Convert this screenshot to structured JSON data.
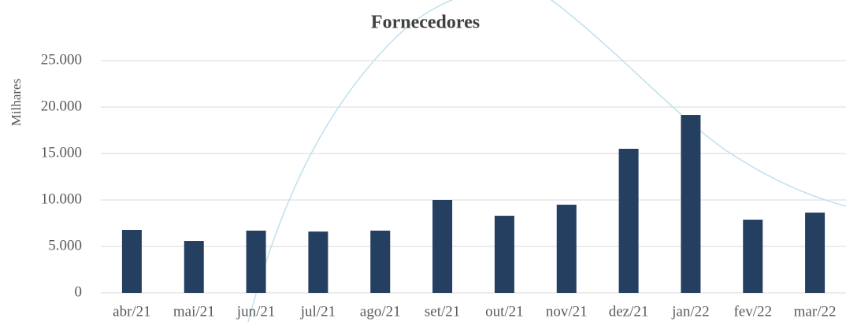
{
  "chart_data": {
    "type": "bar",
    "title": "Fornecedores",
    "y_label": "Milhares",
    "categories": [
      "abr/21",
      "mai/21",
      "jun/21",
      "jul/21",
      "ago/21",
      "set/21",
      "out/21",
      "nov/21",
      "dez/21",
      "jan/22",
      "fev/22",
      "mar/22"
    ],
    "values": [
      6780,
      5590,
      6700,
      6600,
      6700,
      10000,
      8300,
      9490,
      15510,
      19150,
      7880,
      8640
    ],
    "color": "#243f60",
    "ylim": [
      0,
      25000
    ],
    "yticks": [
      0,
      {
        "value": 5000,
        "label": "5.000"
      },
      {
        "value": 10000,
        "label": "10.000"
      },
      {
        "value": 15000,
        "label": "15.000"
      },
      {
        "value": 20000,
        "label": "20.000"
      },
      {
        "value": 25000,
        "label": "25.000"
      }
    ],
    "grid": true
  }
}
